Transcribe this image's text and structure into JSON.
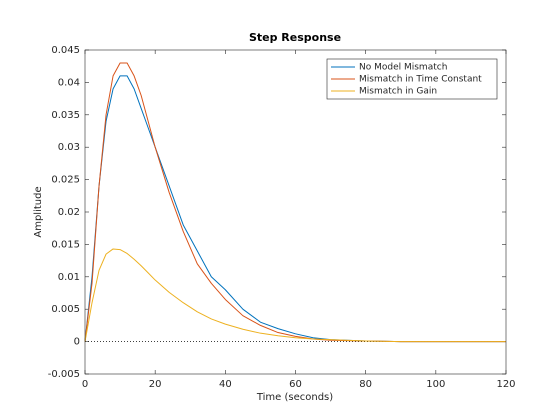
{
  "chart_data": {
    "type": "line",
    "title": "Step Response",
    "xlabel": "Time (seconds)",
    "ylabel": "Amplitude",
    "x": [
      0,
      2,
      4,
      6,
      8,
      10,
      12,
      14,
      16,
      18,
      20,
      24,
      28,
      32,
      36,
      40,
      45,
      50,
      55,
      60,
      65,
      70,
      80,
      90,
      100,
      110,
      120
    ],
    "series": [
      {
        "name": "No Model Mismatch",
        "color": "#0072bd",
        "values": [
          0,
          0.01,
          0.024,
          0.034,
          0.039,
          0.041,
          0.041,
          0.039,
          0.036,
          0.033,
          0.03,
          0.024,
          0.018,
          0.014,
          0.01,
          0.008,
          0.005,
          0.003,
          0.002,
          0.0012,
          0.0006,
          0.0003,
          0.0001,
          0,
          0,
          0,
          0
        ]
      },
      {
        "name": "Mismatch in Time Constant",
        "color": "#d95319",
        "values": [
          0,
          0.009,
          0.024,
          0.035,
          0.041,
          0.043,
          0.043,
          0.041,
          0.038,
          0.034,
          0.03,
          0.023,
          0.017,
          0.012,
          0.009,
          0.0065,
          0.004,
          0.0025,
          0.0014,
          0.0008,
          0.0004,
          0.0002,
          0.0001,
          0,
          0,
          0,
          0
        ]
      },
      {
        "name": "Mismatch in Gain",
        "color": "#edb120",
        "values": [
          0,
          0.006,
          0.011,
          0.0135,
          0.0143,
          0.0142,
          0.0136,
          0.0127,
          0.0117,
          0.0106,
          0.0095,
          0.0076,
          0.006,
          0.0046,
          0.0035,
          0.0027,
          0.0019,
          0.0013,
          0.0009,
          0.0006,
          0.0004,
          0.0003,
          0.0001,
          0,
          0,
          0,
          0
        ]
      }
    ],
    "xlim": [
      0,
      120
    ],
    "xticks": [
      0,
      20,
      40,
      60,
      80,
      100,
      120
    ],
    "ylim": [
      -0.005,
      0.045
    ],
    "yticks": [
      -0.005,
      0,
      0.005,
      0.01,
      0.015,
      0.02,
      0.025,
      0.03,
      0.035,
      0.04,
      0.045
    ],
    "legend": "northeast",
    "grid": false
  }
}
